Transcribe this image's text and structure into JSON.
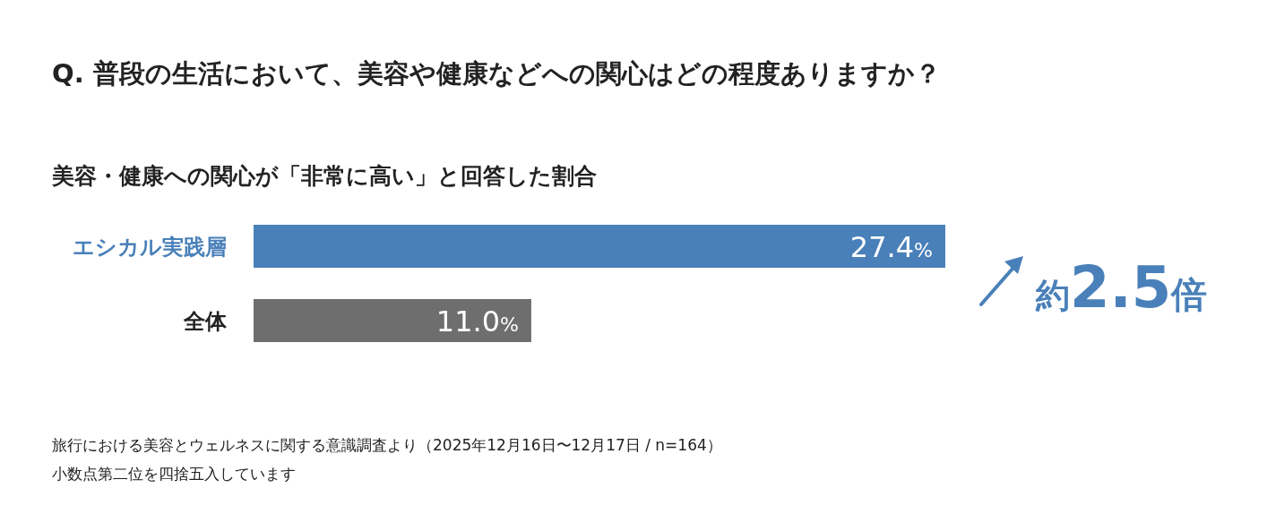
{
  "chart_data": {
    "type": "bar",
    "orientation": "horizontal",
    "title": "Q. 普段の生活において、美容や健康などへの関心はどの程度ありますか？",
    "subtitle": "美容・健康への関心が「非常に高い」と回答した割合",
    "categories": [
      "エシカル実践層",
      "全体"
    ],
    "values": [
      27.4,
      11.0
    ],
    "colors": [
      "#4a80b9",
      "#6f6e6f"
    ],
    "value_labels": [
      "27.4%",
      "11.0%"
    ],
    "annotations": [
      "約2.5倍",
      "旅行における美容とウェルネスに関する意識調査より（2025年12月16日〜12月17日 / n=164）",
      "小数点第二位を四捨五入しています"
    ]
  }
}
